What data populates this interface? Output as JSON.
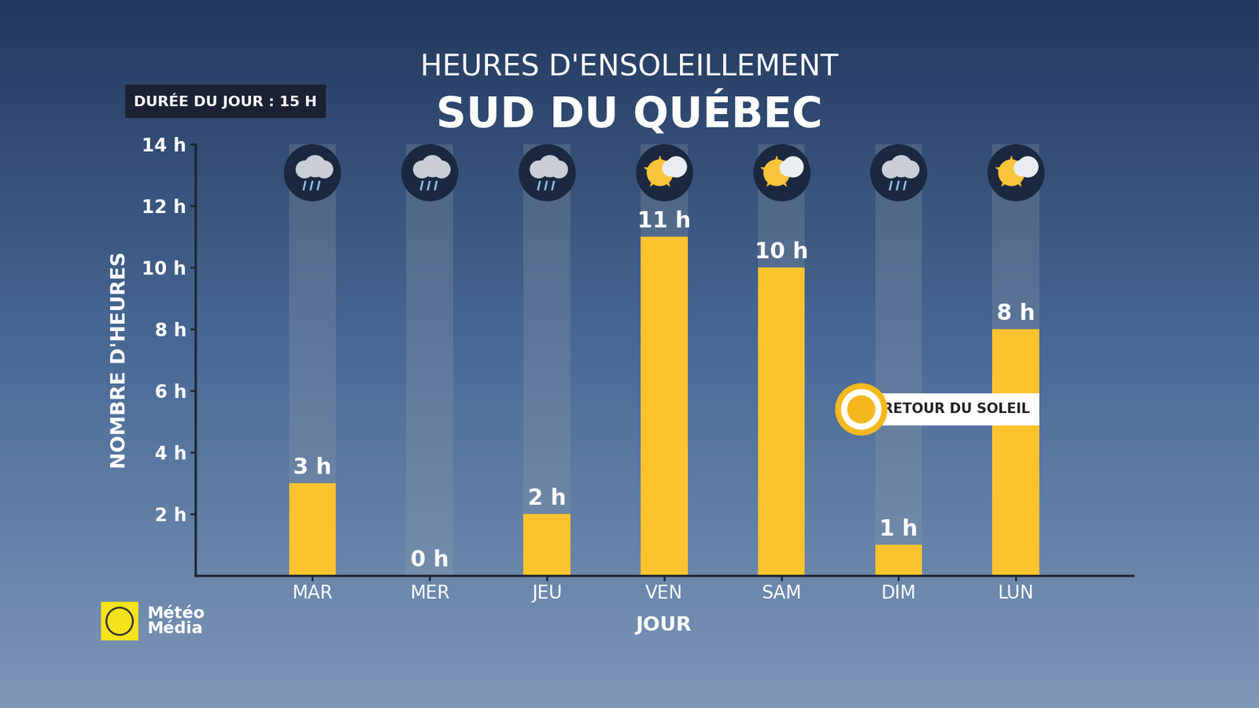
{
  "chart_data": {
    "type": "bar",
    "title": "HEURES D'ENSOLEILLEMENT",
    "subtitle": "SUD DU QUÉBEC",
    "note": "DURÉE DU JOUR : 15 H",
    "x_label": "JOUR",
    "y_label": "NOMBRE D'HEURES",
    "categories": [
      "MAR",
      "MER",
      "JEU",
      "VEN",
      "SAM",
      "DIM",
      "LUN"
    ],
    "values": [
      3,
      0,
      2,
      11,
      10,
      1,
      8
    ],
    "value_labels": [
      "3 h",
      "0 h",
      "2 h",
      "11 h",
      "10 h",
      "1 h",
      "8 h"
    ],
    "data_labels": true,
    "color": "#fcc32e",
    "ylim": [
      0,
      14
    ],
    "yticks": [
      {
        "value": 2,
        "label": "2 h"
      },
      {
        "value": 4,
        "label": "4 h"
      },
      {
        "value": 6,
        "label": "6 h"
      },
      {
        "value": 8,
        "label": "8 h"
      },
      {
        "value": 10,
        "label": "10 h"
      },
      {
        "value": 12,
        "label": "12 h"
      },
      {
        "value": 14,
        "label": "14 h"
      }
    ],
    "grid": false,
    "annotation": "RETOUR DU SOLEIL",
    "logo": "Météo Média"
  }
}
